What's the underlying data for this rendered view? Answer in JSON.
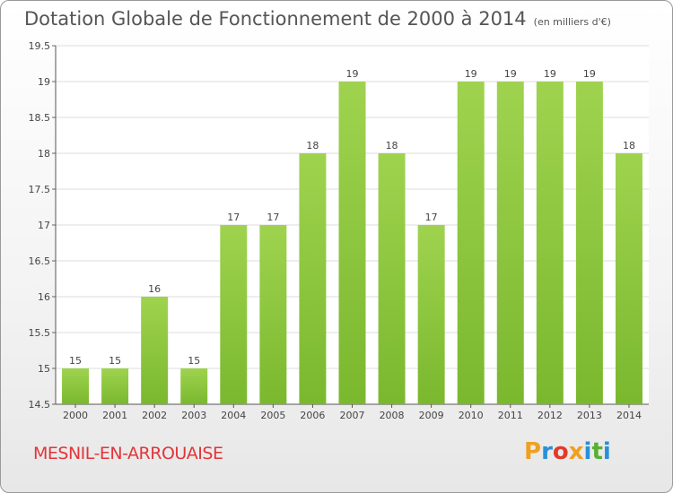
{
  "title": "Dotation Globale de Fonctionnement de 2000 à 2014",
  "subtitle": "(en milliers d'€)",
  "commune": "MESNIL-EN-ARROUAISE",
  "logo": {
    "letters": [
      "P",
      "r",
      "o",
      "x",
      "i",
      "t",
      "i"
    ],
    "colors": [
      "#f0a020",
      "#2a8fd8",
      "#e23a2a",
      "#f0a020",
      "#2a8fd8",
      "#58b030",
      "#2a8fd8"
    ]
  },
  "chart_data": {
    "type": "bar",
    "title": "Dotation Globale de Fonctionnement de 2000 à 2014",
    "subtitle": "(en milliers d'€)",
    "categories": [
      "2000",
      "2001",
      "2002",
      "2003",
      "2004",
      "2005",
      "2006",
      "2007",
      "2008",
      "2009",
      "2010",
      "2011",
      "2012",
      "2013",
      "2014"
    ],
    "values": [
      15,
      15,
      16,
      15,
      17,
      17,
      18,
      19,
      18,
      17,
      19,
      19,
      19,
      19,
      18
    ],
    "data_labels": [
      "15",
      "15",
      "16",
      "15",
      "17",
      "17",
      "18",
      "19",
      "18",
      "17",
      "19",
      "19",
      "19",
      "19",
      "18"
    ],
    "ylim": [
      14.5,
      19.5
    ],
    "yticks": [
      "14.5",
      "15",
      "15.5",
      "16",
      "16.5",
      "17",
      "17.5",
      "18",
      "18.5",
      "19",
      "19.5"
    ],
    "grid": true,
    "bar_color": "#7ab82e",
    "bar_color_light": "#9fd34f",
    "xlabel": "",
    "ylabel": ""
  }
}
